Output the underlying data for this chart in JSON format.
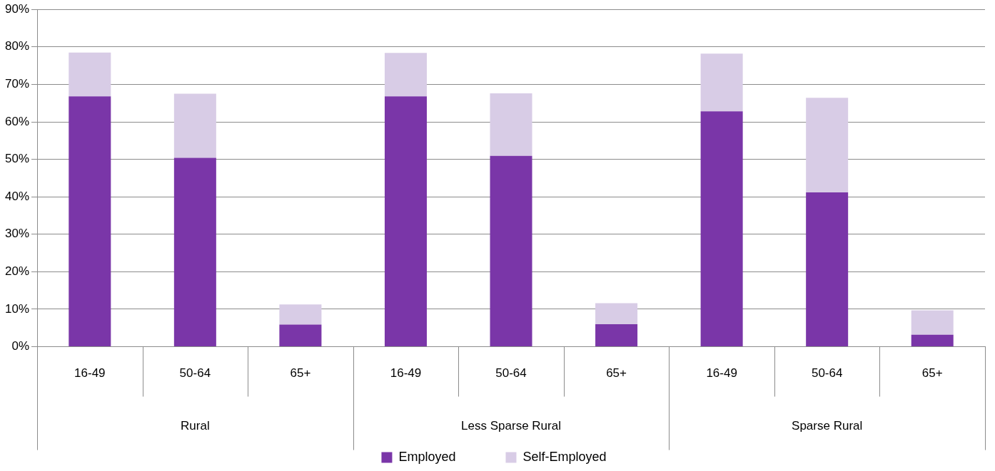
{
  "chart_data": {
    "type": "bar",
    "stacked": true,
    "categories": [
      "16-49",
      "50-64",
      "65+",
      "16-49",
      "50-64",
      "65+",
      "16-49",
      "50-64",
      "65+"
    ],
    "annotations": [
      "Rural",
      "Less Sparse Rural",
      "Sparse Rural"
    ],
    "series": [
      {
        "name": "Employed",
        "color": "#7a36a8",
        "values": [
          66.8,
          50.4,
          5.9,
          66.8,
          50.9,
          6.0,
          62.8,
          41.2,
          3.2
        ]
      },
      {
        "name": "Self-Employed",
        "color": "#d8cce6",
        "values": [
          11.7,
          17.1,
          5.4,
          11.6,
          16.7,
          5.6,
          15.4,
          25.2,
          6.5
        ]
      }
    ],
    "ylim": [
      0,
      90
    ],
    "yticks": [
      {
        "value": 0,
        "label": "0%"
      },
      {
        "value": 10,
        "label": "10%"
      },
      {
        "value": 20,
        "label": "20%"
      },
      {
        "value": 30,
        "label": "30%"
      },
      {
        "value": 40,
        "label": "40%"
      },
      {
        "value": 50,
        "label": "50%"
      },
      {
        "value": 60,
        "label": "60%"
      },
      {
        "value": 70,
        "label": "70%"
      },
      {
        "value": 80,
        "label": "80%"
      },
      {
        "value": 90,
        "label": "90%"
      }
    ],
    "grid": "y",
    "legend": "bottom"
  }
}
